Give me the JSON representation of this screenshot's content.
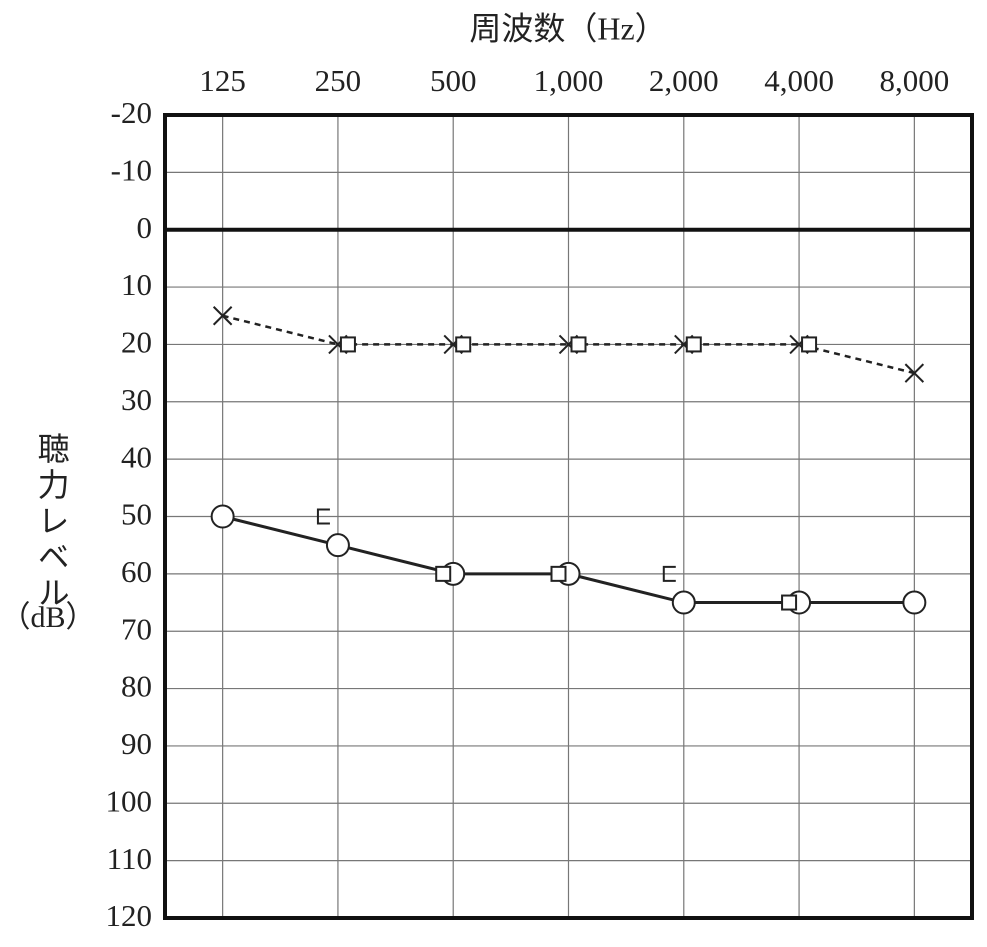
{
  "chart_data": {
    "type": "line",
    "title": "周波数（Hz）",
    "y_label": "聴力レベル",
    "y_label_unit": "（dB）",
    "categories": [
      "125",
      "250",
      "500",
      "1,000",
      "2,000",
      "4,000",
      "8,000"
    ],
    "ylim": [
      -20,
      120
    ],
    "y_inverted": true,
    "yticks": [
      -20,
      -10,
      0,
      10,
      20,
      30,
      40,
      50,
      60,
      70,
      80,
      90,
      100,
      110,
      120
    ],
    "grid": true,
    "zero_line": true,
    "series": [
      {
        "color": "#222222",
        "line_style": "solid",
        "marker": "circle",
        "values": [
          50,
          55,
          60,
          60,
          65,
          65,
          65
        ]
      },
      {
        "color": "#222222",
        "line_style": "dashed",
        "marker": "cross",
        "values": [
          15,
          20,
          20,
          20,
          20,
          20,
          25
        ]
      },
      {
        "color": "#222222",
        "line_style": "none",
        "marker": "square-right",
        "values": [
          null,
          20,
          20,
          20,
          20,
          20,
          null
        ]
      },
      {
        "color": "#222222",
        "line_style": "none",
        "marker": "square-left",
        "values": [
          null,
          null,
          60,
          60,
          null,
          65,
          null
        ]
      },
      {
        "color": "#222222",
        "line_style": "none",
        "marker": "bracket-left",
        "values": [
          null,
          50,
          null,
          null,
          60,
          null,
          null
        ]
      }
    ]
  }
}
